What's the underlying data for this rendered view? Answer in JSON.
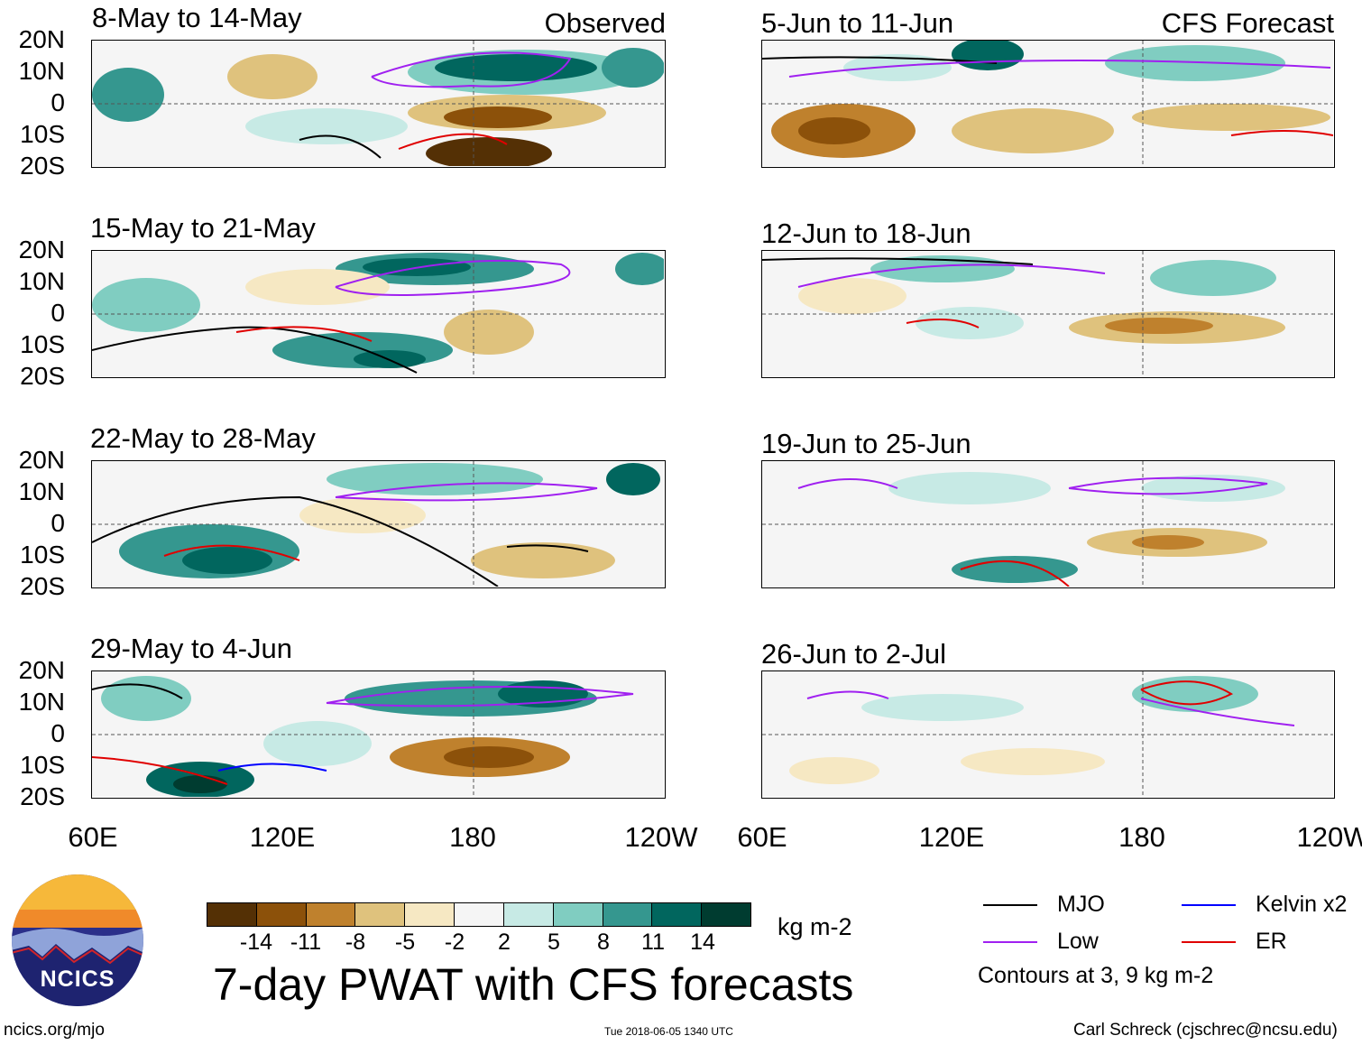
{
  "panels": [
    {
      "title": "8-May to 14-May",
      "tag": "Observed"
    },
    {
      "title": "15-May to 21-May",
      "tag": ""
    },
    {
      "title": "22-May to 28-May",
      "tag": ""
    },
    {
      "title": "29-May to 4-Jun",
      "tag": ""
    },
    {
      "title": "5-Jun to 11-Jun",
      "tag": "CFS Forecast"
    },
    {
      "title": "12-Jun to 18-Jun",
      "tag": ""
    },
    {
      "title": "19-Jun to 25-Jun",
      "tag": ""
    },
    {
      "title": "26-Jun to 2-Jul",
      "tag": ""
    }
  ],
  "lat_labels": [
    "20N",
    "10N",
    "0",
    "10S",
    "20S"
  ],
  "lon_labels": [
    "60E",
    "120E",
    "180",
    "120W"
  ],
  "colorbar": {
    "ticks": [
      "-14",
      "-11",
      "-8",
      "-5",
      "-2",
      "2",
      "5",
      "8",
      "11",
      "14"
    ],
    "colors": [
      "#543005",
      "#8c510a",
      "#bf812d",
      "#dfc27d",
      "#f6e8c3",
      "#f5f5f5",
      "#c7eae5",
      "#80cdc1",
      "#35978f",
      "#01665e",
      "#003c30"
    ],
    "units": "kg m-2"
  },
  "title": "7-day PWAT with CFS forecasts",
  "legend": {
    "items": [
      {
        "label": "MJO",
        "color": "#000000"
      },
      {
        "label": "Kelvin x2",
        "color": "#0000ff"
      },
      {
        "label": "Low",
        "color": "#a020f0"
      },
      {
        "label": "ER",
        "color": "#e00000"
      }
    ],
    "note": "Contours at 3, 9 kg m-2"
  },
  "logo_text": "NCICS",
  "footer": {
    "left": "ncics.org/mjo",
    "center": "Tue 2018-06-05 1340 UTC",
    "right": "Carl Schreck (cjschrec@ncsu.edu)"
  }
}
